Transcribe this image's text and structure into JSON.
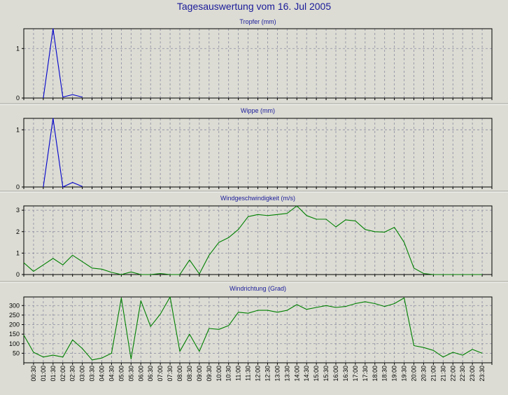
{
  "title": "Tagesauswertung vom 16. Jul 2005",
  "colors": {
    "background": "#dcdcd4",
    "title": "#1a1a9a",
    "grid": "#8a8aa0",
    "series_blue": "#0000cc",
    "series_green": "#008000"
  },
  "x_labels": [
    "00:30",
    "01:00",
    "01:30",
    "02:00",
    "02:30",
    "03:00",
    "03:30",
    "04:00",
    "04:30",
    "05:00",
    "05:30",
    "06:00",
    "06:30",
    "07:00",
    "07:30",
    "08:00",
    "08:30",
    "09:00",
    "09:30",
    "10:00",
    "10:30",
    "11:00",
    "11:30",
    "12:00",
    "12:30",
    "13:00",
    "13:30",
    "14:00",
    "14:30",
    "15:00",
    "15:30",
    "16:00",
    "16:30",
    "17:00",
    "17:30",
    "18:00",
    "18:30",
    "19:00",
    "19:30",
    "20:00",
    "20:30",
    "21:00",
    "21:30",
    "22:00",
    "22:30",
    "23:00",
    "23:30"
  ],
  "chart_data": [
    {
      "type": "line",
      "title": "Tropfer (mm)",
      "x_start": "00:00",
      "x_step": "00:30",
      "ylim": [
        0,
        1.4
      ],
      "yticks": [
        0,
        1
      ],
      "grid": true,
      "series": [
        {
          "color": "#0000cc",
          "values": [
            null,
            null,
            0,
            1.4,
            0.02,
            0.07,
            0.02
          ]
        }
      ]
    },
    {
      "type": "line",
      "title": "Wippe (mm)",
      "x_start": "00:00",
      "x_step": "00:30",
      "ylim": [
        0,
        1.2
      ],
      "yticks": [
        0,
        1
      ],
      "grid": true,
      "series": [
        {
          "color": "#0000cc",
          "values": [
            null,
            null,
            0,
            1.2,
            0,
            0.08,
            0.01
          ]
        }
      ]
    },
    {
      "type": "line",
      "title": "Windgeschwindigkeit (m/s)",
      "x_start": "00:00",
      "x_step": "00:30",
      "ylim": [
        0,
        3.2
      ],
      "yticks": [
        0,
        1,
        2,
        3
      ],
      "grid": true,
      "series": [
        {
          "color": "#008000",
          "values": [
            0.55,
            0.15,
            0.45,
            0.75,
            0.45,
            0.9,
            0.6,
            0.3,
            0.25,
            0.1,
            0,
            0.12,
            0,
            0,
            0.05,
            0,
            0,
            0.68,
            0.03,
            0.9,
            1.5,
            1.72,
            2.1,
            2.7,
            2.8,
            2.75,
            2.8,
            2.85,
            3.2,
            2.75,
            2.58,
            2.58,
            2.22,
            2.55,
            2.5,
            2.1,
            2.0,
            1.98,
            2.2,
            1.5,
            0.3,
            0.05,
            0,
            0,
            0,
            0,
            0,
            0
          ]
        }
      ]
    },
    {
      "type": "line",
      "title": "Windrichtung (Grad)",
      "x_start": "00:00",
      "x_step": "00:30",
      "ylim": [
        0,
        345
      ],
      "yticks": [
        50,
        100,
        150,
        200,
        250,
        300
      ],
      "grid": true,
      "series": [
        {
          "color": "#008000",
          "values": [
            145,
            55,
            30,
            40,
            30,
            120,
            75,
            15,
            25,
            50,
            340,
            20,
            325,
            190,
            255,
            345,
            60,
            150,
            60,
            180,
            175,
            195,
            265,
            260,
            275,
            275,
            265,
            275,
            305,
            280,
            290,
            300,
            290,
            295,
            310,
            320,
            310,
            295,
            310,
            340,
            90,
            80,
            65,
            30,
            55,
            40,
            70,
            50
          ]
        }
      ]
    }
  ]
}
